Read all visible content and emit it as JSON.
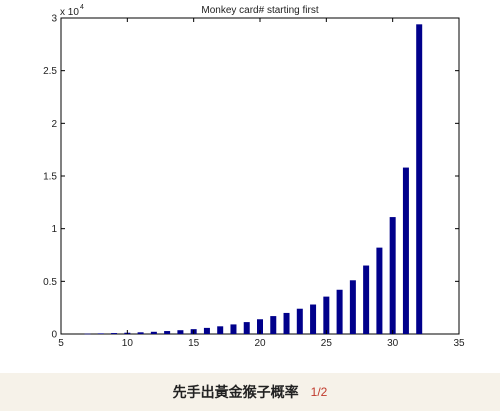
{
  "caption": {
    "text": "先手出黃金猴子概率",
    "page": "1/2"
  },
  "chart_data": {
    "type": "bar",
    "title": "Monkey card# starting first",
    "xlabel": "",
    "ylabel": "",
    "y_multiplier": "x 10",
    "y_exponent": "4",
    "xlim": [
      5,
      35
    ],
    "ylim": [
      0,
      3
    ],
    "x_ticks": [
      5,
      10,
      15,
      20,
      25,
      30,
      35
    ],
    "y_ticks": [
      0,
      0.5,
      1,
      1.5,
      2,
      2.5,
      3
    ],
    "y_tick_labels": [
      "0",
      "0.5",
      "1",
      "1.5",
      "2",
      "2.5",
      "3"
    ],
    "grid": false,
    "bar_color": "#00008b",
    "x": [
      7,
      8,
      9,
      10,
      11,
      12,
      13,
      14,
      15,
      16,
      17,
      18,
      19,
      20,
      21,
      22,
      23,
      24,
      25,
      26,
      27,
      28,
      29,
      30,
      31,
      32
    ],
    "values": [
      0.003,
      0.006,
      0.009,
      0.012,
      0.016,
      0.021,
      0.028,
      0.036,
      0.046,
      0.058,
      0.073,
      0.091,
      0.113,
      0.14,
      0.17,
      0.2,
      0.24,
      0.28,
      0.355,
      0.42,
      0.51,
      0.65,
      0.82,
      1.11,
      1.58,
      2.94
    ]
  }
}
